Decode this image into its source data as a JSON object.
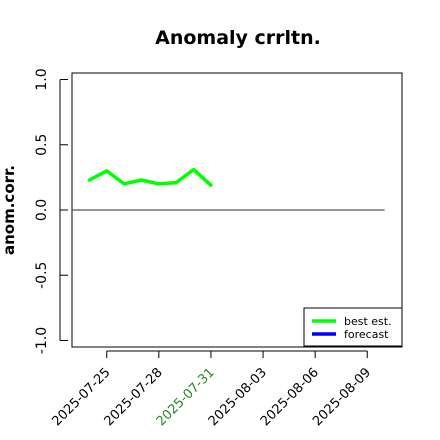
{
  "chart_data": {
    "type": "line",
    "title": "Anomaly crrltn.",
    "xlabel": "",
    "ylabel": "anom.corr.",
    "ylim": [
      -1.05,
      1.05
    ],
    "yticks": [
      -1.0,
      -0.5,
      0.0,
      0.5,
      1.0
    ],
    "ytick_labels": [
      "-1.0",
      "-0.5",
      "0.0",
      "0.5",
      "1.0"
    ],
    "xlim": [
      "2025-07-23",
      "2025-08-11"
    ],
    "xticks": [
      "2025-07-25",
      "2025-07-28",
      "2025-07-31",
      "2025-08-03",
      "2025-08-06",
      "2025-08-09"
    ],
    "xtick_labels": [
      "2025-07-25",
      "2025-07-28",
      "2025-07-31",
      "2025-08-03",
      "2025-08-06",
      "2025-08-09"
    ],
    "highlighted_xtick": "2025-07-31",
    "highlight_color": "#228B22",
    "reference_line": {
      "y": 0,
      "from": "2025-07-23",
      "to": "2025-08-10",
      "color": "#555555"
    },
    "grid": false,
    "legend_position": "bottom-right",
    "series": [
      {
        "name": "best est.",
        "color": "#00ff00",
        "x": [
          "2025-07-24",
          "2025-07-25",
          "2025-07-26",
          "2025-07-27",
          "2025-07-28",
          "2025-07-29",
          "2025-07-30",
          "2025-07-31"
        ],
        "y": [
          0.23,
          0.3,
          0.2,
          0.23,
          0.2,
          0.21,
          0.31,
          0.19
        ]
      },
      {
        "name": "forecast",
        "color": "#0000ff",
        "x": [],
        "y": []
      }
    ]
  }
}
